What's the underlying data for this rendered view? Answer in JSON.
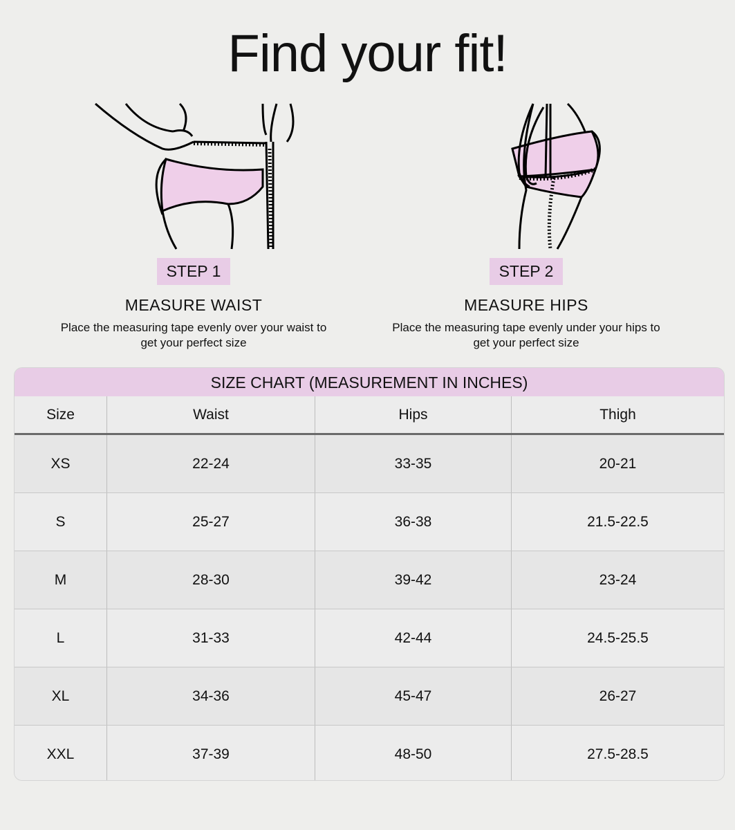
{
  "title": "Find your fit!",
  "steps": [
    {
      "badge": "STEP 1",
      "heading": "MEASURE WAIST",
      "text": "Place the measuring tape evenly over your waist to get your perfect size"
    },
    {
      "badge": "STEP 2",
      "heading": "MEASURE HIPS",
      "text": "Place the measuring tape evenly under your hips to get your perfect size"
    }
  ],
  "colors": {
    "accent": "#e8cce6",
    "background": "#eeeeec"
  },
  "table": {
    "title": "SIZE CHART (MEASUREMENT IN INCHES)",
    "columns": [
      "Size",
      "Waist",
      "Hips",
      "Thigh"
    ],
    "rows": [
      [
        "XS",
        "22-24",
        "33-35",
        "20-21"
      ],
      [
        "S",
        "25-27",
        "36-38",
        "21.5-22.5"
      ],
      [
        "M",
        "28-30",
        "39-42",
        "23-24"
      ],
      [
        "L",
        "31-33",
        "42-44",
        "24.5-25.5"
      ],
      [
        "XL",
        "34-36",
        "45-47",
        "26-27"
      ],
      [
        "XXL",
        "37-39",
        "48-50",
        "27.5-28.5"
      ]
    ]
  }
}
